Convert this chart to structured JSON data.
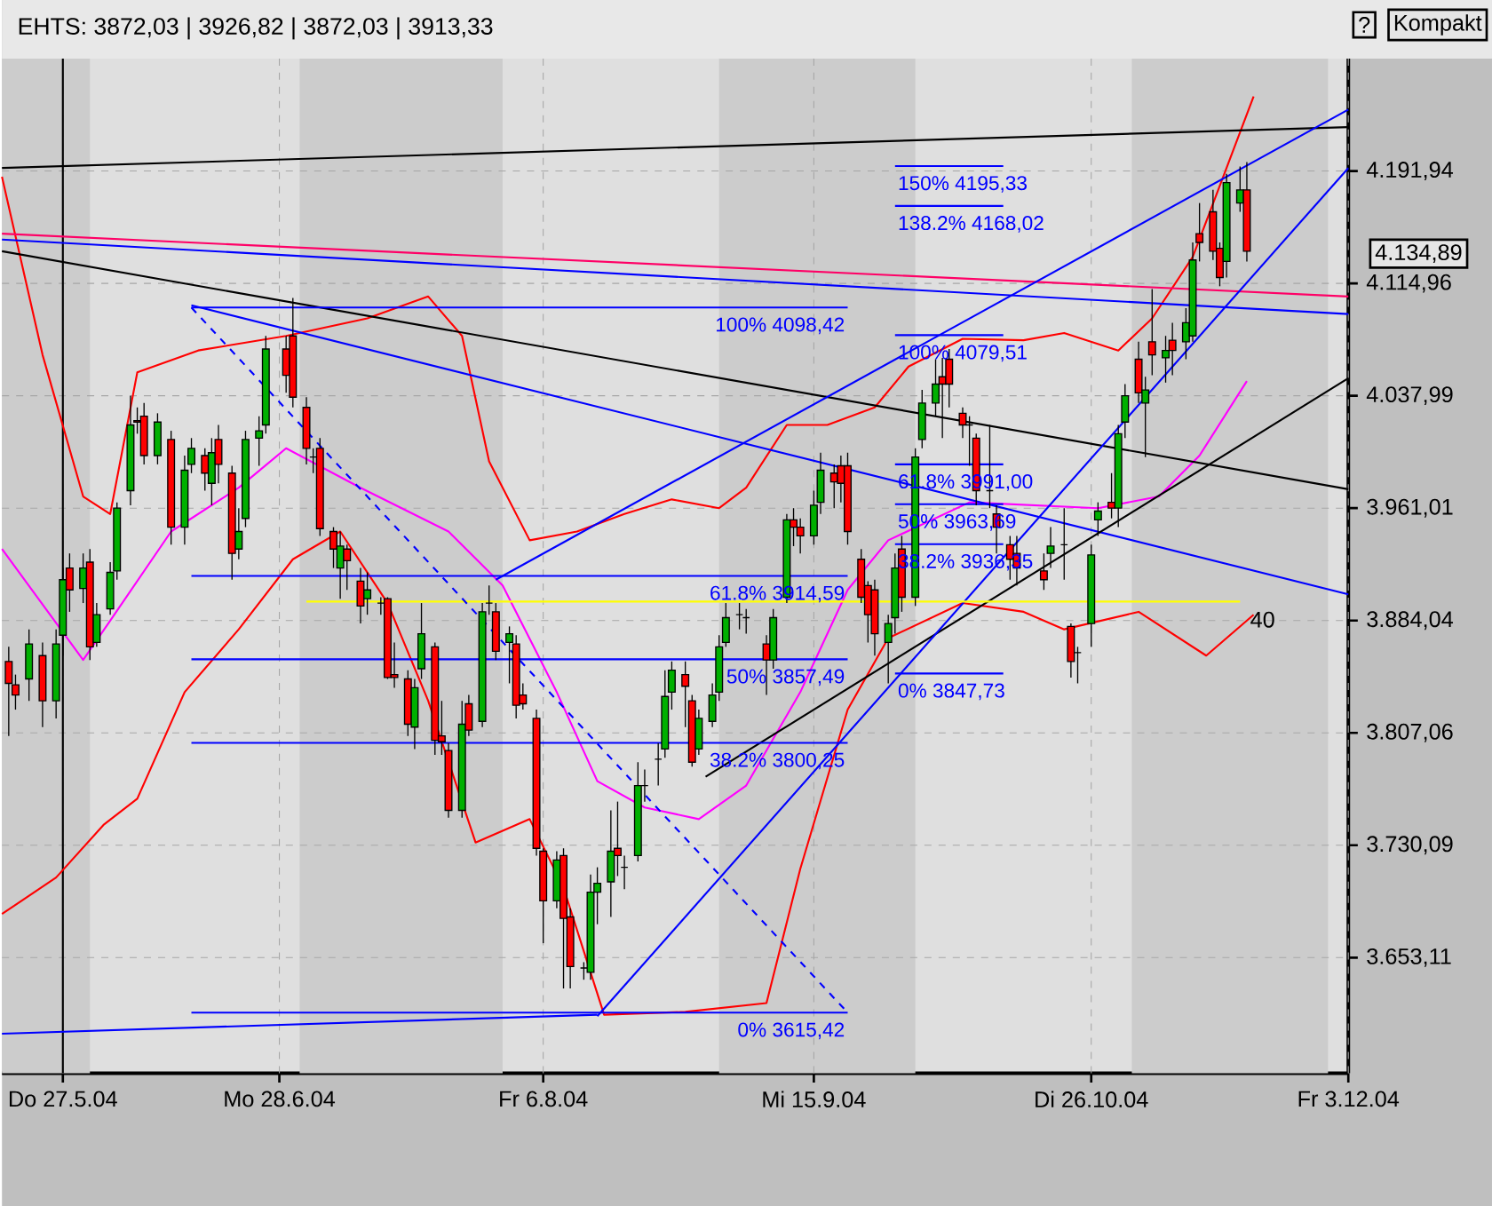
{
  "chart_data": {
    "type": "candlestick",
    "title": "EHTS: 3872,03 | 3926,82 | 3872,03 | 3913,33",
    "x": [
      "2004-05-19",
      "2004-05-20",
      "2004-05-22",
      "2004-05-24",
      "2004-05-26",
      "2004-05-27",
      "2004-05-28",
      "2004-05-30",
      "2004-05-31",
      "2004-06-01",
      "2004-06-03",
      "2004-06-04",
      "2004-06-06",
      "2004-06-07",
      "2004-06-08",
      "2004-06-10",
      "2004-06-12",
      "2004-06-14",
      "2004-06-15",
      "2004-06-17",
      "2004-06-18",
      "2004-06-19",
      "2004-06-21",
      "2004-06-22",
      "2004-06-23",
      "2004-06-25",
      "2004-06-26",
      "2004-06-29",
      "2004-06-30",
      "2004-07-02",
      "2004-07-03",
      "2004-07-04",
      "2004-07-06",
      "2004-07-07",
      "2004-07-08",
      "2004-07-10",
      "2004-07-11",
      "2004-07-13",
      "2004-07-14",
      "2004-07-15",
      "2004-07-17",
      "2004-07-18",
      "2004-07-19",
      "2004-07-21",
      "2004-07-22",
      "2004-07-23",
      "2004-07-25",
      "2004-07-26",
      "2004-07-28",
      "2004-07-29",
      "2004-07-30",
      "2004-08-01",
      "2004-08-02",
      "2004-08-03",
      "2004-08-05",
      "2004-08-06",
      "2004-08-08",
      "2004-08-09",
      "2004-08-10",
      "2004-08-12",
      "2004-08-13",
      "2004-08-14",
      "2004-08-16",
      "2004-08-17",
      "2004-08-18",
      "2004-08-20",
      "2004-08-21",
      "2004-08-23",
      "2004-08-24",
      "2004-08-25",
      "2004-08-27",
      "2004-08-28",
      "2004-08-29",
      "2004-08-31",
      "2004-09-01",
      "2004-09-02",
      "2004-09-04",
      "2004-09-05",
      "2004-09-08",
      "2004-09-09",
      "2004-09-11",
      "2004-09-12",
      "2004-09-13",
      "2004-09-15",
      "2004-09-16",
      "2004-09-18",
      "2004-09-19",
      "2004-09-20",
      "2004-09-22",
      "2004-09-23",
      "2004-09-24",
      "2004-09-26",
      "2004-09-27",
      "2004-09-28",
      "2004-09-30",
      "2004-10-01",
      "2004-10-03",
      "2004-10-04",
      "2004-10-05",
      "2004-10-07",
      "2004-10-08",
      "2004-10-09",
      "2004-10-11",
      "2004-10-12",
      "2004-10-14",
      "2004-10-15",
      "2004-10-19",
      "2004-10-20",
      "2004-10-22",
      "2004-10-23",
      "2004-10-24",
      "2004-10-26",
      "2004-10-27",
      "2004-10-29",
      "2004-10-30",
      "2004-10-31",
      "2004-11-02",
      "2004-11-03",
      "2004-11-04",
      "2004-11-06",
      "2004-11-07",
      "2004-11-09",
      "2004-11-10",
      "2004-11-11",
      "2004-11-13",
      "2004-11-14",
      "2004-11-15",
      "2004-11-17",
      "2004-11-18"
    ],
    "ohlc": [
      [
        3856,
        3866,
        3805,
        3841
      ],
      [
        3840,
        3847,
        3823,
        3833
      ],
      [
        3844,
        3878,
        3829,
        3868
      ],
      [
        3860,
        3869,
        3811,
        3829
      ],
      [
        3829,
        3878,
        3817,
        3868
      ],
      [
        3874,
        3920,
        3860,
        3912
      ],
      [
        3920,
        3930,
        3890,
        3905
      ],
      [
        3906,
        3930,
        3896,
        3920
      ],
      [
        3924,
        3933,
        3857,
        3866
      ],
      [
        3869,
        3896,
        3866,
        3888
      ],
      [
        3892,
        3924,
        3888,
        3917
      ],
      [
        3918,
        3965,
        3912,
        3961
      ],
      [
        3973,
        4038,
        3963,
        4018
      ],
      [
        4021,
        4030,
        4012,
        4020
      ],
      [
        4024,
        4033,
        3991,
        3997
      ],
      [
        3997,
        4026,
        3991,
        4020
      ],
      [
        4008,
        4014,
        3936,
        3948
      ],
      [
        3948,
        3997,
        3936,
        3987
      ],
      [
        3991,
        4009,
        3985,
        4002
      ],
      [
        3997,
        4002,
        3973,
        3985
      ],
      [
        3978,
        4009,
        3963,
        3999
      ],
      [
        4008,
        4018,
        3978,
        3991
      ],
      [
        3985,
        3990,
        3912,
        3930
      ],
      [
        3933,
        3961,
        3926,
        3945
      ],
      [
        3954,
        4014,
        3948,
        4008
      ],
      [
        4009,
        4024,
        3990,
        4014
      ],
      [
        4018,
        4079,
        4012,
        4070
      ],
      [
        4070,
        4079,
        4040,
        4052
      ],
      [
        4079,
        4105,
        4030,
        4037
      ],
      [
        4030,
        4037,
        3991,
        4002
      ],
      [
        3996,
        4002,
        3985,
        3996
      ],
      [
        4002,
        4009,
        3942,
        3947
      ],
      [
        3945,
        3948,
        3920,
        3933
      ],
      [
        3920,
        3945,
        3899,
        3935
      ],
      [
        3933,
        3936,
        3905,
        3925
      ],
      [
        3911,
        3920,
        3882,
        3894
      ],
      [
        3899,
        3917,
        3888,
        3905
      ],
      [
        3896,
        3900,
        3888,
        3896
      ],
      [
        3899,
        3900,
        3844,
        3845
      ],
      [
        3847,
        3869,
        3838,
        3845
      ],
      [
        3844,
        3850,
        3805,
        3813
      ],
      [
        3811,
        3844,
        3796,
        3838
      ],
      [
        3851,
        3896,
        3844,
        3875
      ],
      [
        3866,
        3869,
        3792,
        3802
      ],
      [
        3805,
        3829,
        3792,
        3801
      ],
      [
        3795,
        3800,
        3749,
        3754
      ],
      [
        3754,
        3829,
        3749,
        3813
      ],
      [
        3827,
        3833,
        3805,
        3809
      ],
      [
        3815,
        3896,
        3811,
        3890
      ],
      [
        3896,
        3908,
        3888,
        3896
      ],
      [
        3890,
        3896,
        3857,
        3863
      ],
      [
        3869,
        3880,
        3841,
        3875
      ],
      [
        3868,
        3874,
        3817,
        3826
      ],
      [
        3833,
        3841,
        3823,
        3827
      ],
      [
        3817,
        3823,
        3723,
        3728
      ],
      [
        3726,
        3728,
        3663,
        3692
      ],
      [
        3692,
        3726,
        3687,
        3720
      ],
      [
        3723,
        3728,
        3632,
        3680
      ],
      [
        3681,
        3687,
        3632,
        3647
      ],
      [
        3646,
        3650,
        3638,
        3646
      ],
      [
        3643,
        3710,
        3638,
        3698
      ],
      [
        3698,
        3715,
        3676,
        3704
      ],
      [
        3705,
        3754,
        3681,
        3726
      ],
      [
        3728,
        3760,
        3709,
        3723
      ],
      [
        3715,
        3723,
        3700,
        3715
      ],
      [
        3723,
        3787,
        3719,
        3771
      ],
      [
        3771,
        3782,
        3760,
        3771
      ],
      [
        3789,
        3800,
        3771,
        3789
      ],
      [
        3796,
        3850,
        3790,
        3832
      ],
      [
        3835,
        3856,
        3823,
        3850
      ],
      [
        3847,
        3856,
        3811,
        3839
      ],
      [
        3829,
        3833,
        3784,
        3787
      ],
      [
        3796,
        3823,
        3792,
        3817
      ],
      [
        3815,
        3841,
        3811,
        3833
      ],
      [
        3835,
        3874,
        3829,
        3866
      ],
      [
        3869,
        3896,
        3866,
        3886
      ],
      [
        3888,
        3896,
        3878,
        3888
      ],
      [
        3886,
        3892,
        3875,
        3886
      ],
      [
        3868,
        3874,
        3833,
        3857
      ],
      [
        3857,
        3892,
        3851,
        3886
      ],
      [
        3900,
        3957,
        3896,
        3953
      ],
      [
        3953,
        3961,
        3935,
        3948
      ],
      [
        3948,
        3954,
        3930,
        3942
      ],
      [
        3942,
        3973,
        3936,
        3963
      ],
      [
        3965,
        3999,
        3957,
        3987
      ],
      [
        3985,
        3991,
        3961,
        3979
      ],
      [
        3990,
        3997,
        3965,
        3978
      ],
      [
        3990,
        3999,
        3936,
        3945
      ],
      [
        3926,
        3933,
        3896,
        3900
      ],
      [
        3908,
        3911,
        3869,
        3888
      ],
      [
        3905,
        3912,
        3860,
        3875
      ],
      [
        3869,
        3888,
        3841,
        3882
      ],
      [
        3886,
        3930,
        3875,
        3920
      ],
      [
        3933,
        3942,
        3890,
        3900
      ],
      [
        3900,
        4002,
        3894,
        3996
      ],
      [
        4008,
        4042,
        4002,
        4033
      ],
      [
        4033,
        4063,
        4024,
        4046
      ],
      [
        4051,
        4064,
        4009,
        4046
      ],
      [
        4063,
        4070,
        4030,
        4046
      ],
      [
        4026,
        4030,
        4009,
        4018
      ],
      [
        4018,
        4024,
        3990,
        4018
      ],
      [
        4009,
        4012,
        3963,
        3973
      ],
      [
        3973,
        4018,
        3961,
        3973
      ],
      [
        3957,
        3963,
        3930,
        3948
      ],
      [
        3936,
        3942,
        3912,
        3926
      ],
      [
        3930,
        3942,
        3908,
        3920
      ],
      [
        3918,
        3930,
        3905,
        3912
      ],
      [
        3930,
        3948,
        3920,
        3935
      ],
      [
        3936,
        3961,
        3912,
        3936
      ],
      [
        3880,
        3882,
        3845,
        3856
      ],
      [
        3862,
        3866,
        3841,
        3862
      ],
      [
        3882,
        3936,
        3866,
        3929
      ],
      [
        3953,
        3965,
        3942,
        3959
      ],
      [
        3965,
        3985,
        3954,
        3961
      ],
      [
        3961,
        4018,
        3948,
        4012
      ],
      [
        4020,
        4046,
        4009,
        4038
      ],
      [
        4063,
        4075,
        4033,
        4040
      ],
      [
        4033,
        4051,
        3996,
        4042
      ],
      [
        4075,
        4111,
        4052,
        4066
      ],
      [
        4064,
        4079,
        4047,
        4069
      ],
      [
        4076,
        4088,
        4052,
        4069
      ],
      [
        4075,
        4098,
        4063,
        4088
      ],
      [
        4079,
        4143,
        4075,
        4131
      ],
      [
        4149,
        4170,
        4130,
        4143
      ],
      [
        4164,
        4179,
        4131,
        4137
      ],
      [
        4139,
        4143,
        4113,
        4119
      ],
      [
        4130,
        4190,
        4119,
        4184
      ],
      [
        4170,
        4195,
        4164,
        4179
      ],
      [
        4179,
        4198,
        4130,
        4137
      ]
    ],
    "series": [
      {
        "type": "line",
        "color": "#ff0000",
        "x": [
          "2004-05-18",
          "2004-05-24",
          "2004-05-30",
          "2004-06-03",
          "2004-06-07",
          "2004-06-16",
          "2004-06-29",
          "2004-07-11",
          "2004-07-20",
          "2004-07-25",
          "2004-07-29",
          "2004-08-04",
          "2004-08-11",
          "2004-08-18",
          "2004-08-25",
          "2004-09-01",
          "2004-09-05",
          "2004-09-11",
          "2004-09-17",
          "2004-09-24",
          "2004-09-29",
          "2004-10-07",
          "2004-10-16",
          "2004-10-22",
          "2004-10-30",
          "2004-11-04",
          "2004-11-10",
          "2004-11-15",
          "2004-11-19"
        ],
        "values": [
          4188,
          4066,
          3969,
          3957,
          4054,
          4069,
          4079,
          4091,
          4106,
          4079,
          3993,
          3939,
          3945,
          3957,
          3967,
          3961,
          3975,
          4018,
          4018,
          4030,
          4058,
          4077,
          4076,
          4081,
          4069,
          4091,
          4133,
          4194,
          4243
        ]
      },
      {
        "type": "line",
        "color": "#ff0000",
        "x": [
          "2004-05-18",
          "2004-05-26",
          "2004-06-02",
          "2004-06-07",
          "2004-06-14",
          "2004-06-22",
          "2004-06-30",
          "2004-07-07",
          "2004-07-14",
          "2004-07-20",
          "2004-07-27",
          "2004-08-04",
          "2004-08-09",
          "2004-08-15",
          "2004-08-27",
          "2004-09-08",
          "2004-09-13",
          "2004-09-20",
          "2004-09-26",
          "2004-10-07",
          "2004-10-16",
          "2004-10-22",
          "2004-11-02",
          "2004-11-12",
          "2004-11-19"
        ],
        "values": [
          3683,
          3708,
          3744,
          3762,
          3835,
          3878,
          3926,
          3945,
          3896,
          3829,
          3732,
          3748,
          3701,
          3614,
          3616,
          3622,
          3714,
          3823,
          3872,
          3896,
          3890,
          3878,
          3890,
          3860,
          3888
        ]
      },
      {
        "type": "line",
        "color": "#ff00ff",
        "x": [
          "2004-05-18",
          "2004-05-30",
          "2004-06-03",
          "2004-06-12",
          "2004-06-22",
          "2004-06-29",
          "2004-07-10",
          "2004-07-23",
          "2004-07-31",
          "2004-08-08",
          "2004-08-14",
          "2004-08-21",
          "2004-08-29",
          "2004-09-05",
          "2004-09-13",
          "2004-09-20",
          "2004-09-26",
          "2004-10-08",
          "2004-10-27",
          "2004-11-05",
          "2004-11-11",
          "2004-11-18"
        ],
        "values": [
          3933,
          3857,
          3884,
          3945,
          3975,
          4002,
          3975,
          3945,
          3908,
          3835,
          3774,
          3756,
          3748,
          3771,
          3835,
          3905,
          3939,
          3965,
          3961,
          3969,
          3997,
          4048
        ]
      },
      {
        "type": "line",
        "color": "#000000",
        "x": [
          "2004-05-18",
          "2004-12-03"
        ],
        "values": [
          4194,
          4222
        ]
      },
      {
        "type": "line",
        "color": "#000000",
        "x": [
          "2004-05-18",
          "2004-12-03"
        ],
        "values": [
          4137,
          3974
        ]
      },
      {
        "type": "line",
        "color": "#ff0066",
        "x": [
          "2004-05-18",
          "2004-12-03"
        ],
        "values": [
          4149,
          4106
        ]
      },
      {
        "type": "line",
        "color": "#0000ff",
        "x": [
          "2004-05-18",
          "2004-12-03"
        ],
        "values": [
          4145,
          4094
        ]
      },
      {
        "type": "line",
        "color": "#0000ff",
        "x": [
          "2004-06-15",
          "2004-12-03"
        ],
        "values": [
          4100,
          3902
        ]
      },
      {
        "type": "line",
        "color": "#000000",
        "x": [
          "2004-08-30",
          "2004-12-03"
        ],
        "values": [
          3777,
          4050
        ]
      },
      {
        "type": "line",
        "color": "#0000ff",
        "x": [
          "2004-07-30",
          "2004-12-03"
        ],
        "values": [
          3912,
          4234
        ]
      },
      {
        "type": "line",
        "color": "#0000ff",
        "x": [
          "2004-08-14",
          "2004-12-03"
        ],
        "values": [
          3613,
          4194
        ]
      },
      {
        "type": "line",
        "color": "#ffff00",
        "x": [
          "2004-07-02",
          "2004-11-17"
        ],
        "values": [
          3897,
          3897
        ]
      },
      {
        "type": "line",
        "color": "#0000ff",
        "line_style": "dashed",
        "x": [
          "2004-06-15",
          "2004-09-20"
        ],
        "values": [
          4098.42,
          3615.42
        ]
      },
      {
        "type": "line",
        "color": "#0000ff",
        "x": [
          "2004-05-18",
          "2004-08-14"
        ],
        "values": [
          3601,
          3614
        ]
      },
      {
        "type": "line",
        "color": "#0000ff",
        "x": [
          "2004-06-15",
          "2004-09-20"
        ],
        "values": [
          4098.42,
          4098.42
        ]
      },
      {
        "type": "line",
        "color": "#0000ff",
        "x": [
          "2004-06-15",
          "2004-09-20"
        ],
        "values": [
          3914.59,
          3914.59
        ]
      },
      {
        "type": "line",
        "color": "#0000ff",
        "x": [
          "2004-06-15",
          "2004-09-20"
        ],
        "values": [
          3857.49,
          3857.49
        ]
      },
      {
        "type": "line",
        "color": "#0000ff",
        "x": [
          "2004-06-15",
          "2004-09-20"
        ],
        "values": [
          3800.25,
          3800.25
        ]
      },
      {
        "type": "line",
        "color": "#0000ff",
        "x": [
          "2004-06-15",
          "2004-09-20"
        ],
        "values": [
          3615.42,
          3615.42
        ]
      },
      {
        "type": "line",
        "color": "#0000ff",
        "x": [
          "2004-09-27",
          "2004-10-13"
        ],
        "values": [
          4195.33,
          4195.33
        ]
      },
      {
        "type": "line",
        "color": "#0000ff",
        "x": [
          "2004-09-27",
          "2004-10-13"
        ],
        "values": [
          4168.02,
          4168.02
        ]
      },
      {
        "type": "line",
        "color": "#0000ff",
        "x": [
          "2004-09-27",
          "2004-10-13"
        ],
        "values": [
          4079.51,
          4079.51
        ]
      },
      {
        "type": "line",
        "color": "#0000ff",
        "x": [
          "2004-09-27",
          "2004-10-13"
        ],
        "values": [
          3991.0,
          3991.0
        ]
      },
      {
        "type": "line",
        "color": "#0000ff",
        "x": [
          "2004-09-27",
          "2004-10-13"
        ],
        "values": [
          3963.69,
          3963.69
        ]
      },
      {
        "type": "line",
        "color": "#0000ff",
        "x": [
          "2004-09-27",
          "2004-10-13"
        ],
        "values": [
          3936.35,
          3936.35
        ]
      },
      {
        "type": "line",
        "color": "#0000ff",
        "x": [
          "2004-09-27",
          "2004-10-13"
        ],
        "values": [
          3847.73,
          3847.73
        ]
      }
    ],
    "xlim": [
      "2004-05-18",
      "2004-12-03"
    ],
    "ylim": [
      3574,
      4269
    ],
    "xticks": [
      {
        "value": "2004-05-27",
        "label": "Do 27.5.04"
      },
      {
        "value": "2004-06-28",
        "label": "Mo 28.6.04"
      },
      {
        "value": "2004-08-06",
        "label": "Fr 6.8.04"
      },
      {
        "value": "2004-09-15",
        "label": "Mi 15.9.04"
      },
      {
        "value": "2004-10-26",
        "label": "Di 26.10.04"
      },
      {
        "value": "2004-12-03",
        "label": "Fr 3.12.04"
      }
    ],
    "yticks": [
      {
        "value": 4191.94,
        "label": "4.191,94"
      },
      {
        "value": 4114.96,
        "label": "4.114,96"
      },
      {
        "value": 4037.99,
        "label": "4.037,99"
      },
      {
        "value": 3961.01,
        "label": "3.961,01"
      },
      {
        "value": 3884.04,
        "label": "3.884,04"
      },
      {
        "value": 3807.06,
        "label": "3.807,06"
      },
      {
        "value": 3730.09,
        "label": "3.730,09"
      },
      {
        "value": 3653.11,
        "label": "3.653,11"
      }
    ],
    "grid": true,
    "bands": [
      {
        "axis": "x",
        "from": "2004-05-18",
        "to": "2004-05-31",
        "color": "#cccccc"
      },
      {
        "axis": "x",
        "from": "2004-07-01",
        "to": "2004-07-31",
        "color": "#cccccc"
      },
      {
        "axis": "x",
        "from": "2004-09-01",
        "to": "2004-09-30",
        "color": "#cccccc"
      },
      {
        "axis": "x",
        "from": "2004-11-01",
        "to": "2004-11-30",
        "color": "#cccccc"
      }
    ],
    "ref_lines": [
      {
        "axis": "x",
        "value": "2004-05-27",
        "color": "#000000"
      }
    ],
    "annotations": [
      "?",
      "Kompakt",
      "40",
      "4.134,89",
      {
        "text": "100% 4098,42",
        "x": "2004-09-20",
        "y": 4098.42
      },
      {
        "text": "61.8% 3914,59",
        "x": "2004-09-20",
        "y": 3914.59
      },
      {
        "text": "50% 3857,49",
        "x": "2004-09-20",
        "y": 3857.49
      },
      {
        "text": "38.2% 3800,25",
        "x": "2004-09-20",
        "y": 3800.25
      },
      {
        "text": "0% 3615,42",
        "x": "2004-09-20",
        "y": 3615.42
      },
      {
        "text": "150% 4195,33",
        "x": "2004-09-27",
        "y": 4195.33
      },
      {
        "text": "138.2% 4168,02",
        "x": "2004-09-27",
        "y": 4168.02
      },
      {
        "text": "100% 4079,51",
        "x": "2004-09-27",
        "y": 4079.51
      },
      {
        "text": "61.8% 3991,00",
        "x": "2004-09-27",
        "y": 3991.0
      },
      {
        "text": "50% 3963,69",
        "x": "2004-09-27",
        "y": 3963.69
      },
      {
        "text": "38.2% 3936,35",
        "x": "2004-09-27",
        "y": 3936.35
      },
      {
        "text": "0% 3847,73",
        "x": "2004-09-27",
        "y": 3847.73
      }
    ]
  }
}
